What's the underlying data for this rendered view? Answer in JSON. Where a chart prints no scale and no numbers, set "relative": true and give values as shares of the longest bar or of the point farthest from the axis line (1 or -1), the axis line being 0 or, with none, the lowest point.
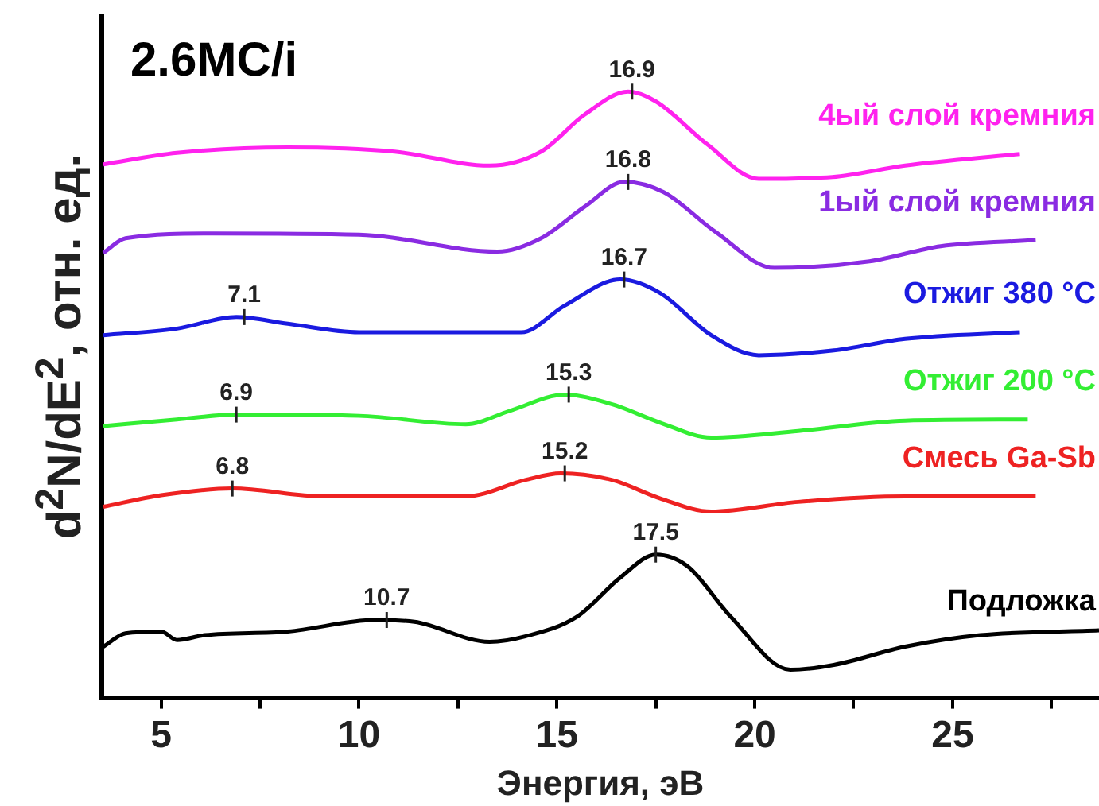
{
  "chart_data": {
    "type": "line",
    "relative": true,
    "xlabel": "Энергия, эВ",
    "ylabel": "d$^{2}$N/dE$^{2}$, отн. ед.",
    "xlim": [
      3.5,
      28.7
    ],
    "xticks": [
      5,
      {
        "value": 7.5,
        "label": null
      },
      10,
      {
        "value": 12.5,
        "label": null
      },
      15,
      {
        "value": 17.5,
        "label": null
      },
      20,
      {
        "value": 22.5,
        "label": null
      },
      25,
      {
        "value": 27.5,
        "label": null
      }
    ],
    "grid": false,
    "legend": false,
    "marker": "none",
    "line_style": "solid",
    "annotations": [
      "2.6MC/i",
      {
        "text": "16.9",
        "x": 16.9,
        "y": 1
      },
      {
        "text": "16.8",
        "x": 16.8,
        "y": 0.851
      },
      {
        "text": "7.1",
        "x": 7.1,
        "y": 0.628
      },
      {
        "text": "16.7",
        "x": 16.7,
        "y": 0.69
      },
      {
        "text": "6.9",
        "x": 6.9,
        "y": 0.467
      },
      {
        "text": "15.3",
        "x": 15.3,
        "y": 0.5
      },
      {
        "text": "6.8",
        "x": 6.8,
        "y": 0.345
      },
      {
        "text": "15.2",
        "x": 15.2,
        "y": 0.37
      },
      {
        "text": "10.7",
        "x": 10.7,
        "y": 0.128
      },
      {
        "text": "17.5",
        "x": 17.5,
        "y": 0.236
      }
    ],
    "series": [
      {
        "name": "4ый слой кремния",
        "color": "#ff22ee",
        "x": [
          3.54,
          5.4,
          8.2,
          10.9,
          13.3,
          14.6,
          15.7,
          16.8,
          17.5,
          18.8,
          20.1,
          21.96,
          23.8,
          26.7
        ],
        "values": [
          0.88,
          0.899,
          0.908,
          0.901,
          0.878,
          0.901,
          0.962,
          1,
          0.984,
          0.913,
          0.856,
          0.859,
          0.878,
          0.897
        ]
      },
      {
        "name": "1ый слой кремния",
        "color": "#8a2be2",
        "x": [
          3.54,
          4.1,
          6.3,
          10.0,
          13.5,
          14.6,
          15.7,
          16.7,
          17.7,
          19.0,
          20.5,
          22.9,
          24.7,
          27.1
        ],
        "values": [
          0.734,
          0.758,
          0.766,
          0.764,
          0.736,
          0.758,
          0.81,
          0.851,
          0.834,
          0.769,
          0.709,
          0.72,
          0.745,
          0.755
        ]
      },
      {
        "name": "Отжиг 380 °C",
        "color": "#1a1ae0",
        "x": [
          3.54,
          5.4,
          6.9,
          8.2,
          10.0,
          14.1,
          15.2,
          16.6,
          17.6,
          18.9,
          20.1,
          22.0,
          23.8,
          26.7
        ],
        "values": [
          0.598,
          0.609,
          0.628,
          0.617,
          0.603,
          0.603,
          0.647,
          0.69,
          0.668,
          0.598,
          0.565,
          0.573,
          0.592,
          0.603
        ]
      },
      {
        "name": "Отжиг 200 °C",
        "color": "#33ee33",
        "x": [
          3.54,
          5.4,
          6.9,
          10.0,
          12.7,
          13.8,
          15.2,
          16.4,
          17.6,
          18.9,
          21.1,
          23.8,
          26.9
        ],
        "values": [
          0.448,
          0.459,
          0.467,
          0.465,
          0.451,
          0.473,
          0.5,
          0.484,
          0.454,
          0.429,
          0.44,
          0.457,
          0.459
        ]
      },
      {
        "name": "Смесь Ga-Sb",
        "color": "#ee2222",
        "x": [
          3.54,
          5.0,
          6.8,
          9.1,
          12.7,
          14.2,
          15.1,
          16.4,
          17.6,
          18.9,
          21.1,
          23.8,
          27.1
        ],
        "values": [
          0.315,
          0.334,
          0.345,
          0.332,
          0.332,
          0.359,
          0.37,
          0.359,
          0.329,
          0.307,
          0.323,
          0.332,
          0.332
        ]
      },
      {
        "name": "Подложка",
        "color": "#000000",
        "x": [
          3.54,
          4.1,
          5.0,
          5.4,
          6.1,
          8.2,
          10.4,
          11.4,
          13.3,
          14.2,
          15.5,
          16.6,
          17.5,
          18.3,
          19.4,
          20.9,
          22.0,
          23.8,
          25.7,
          28.7
        ],
        "values": [
          0.084,
          0.106,
          0.109,
          0.095,
          0.103,
          0.109,
          0.128,
          0.125,
          0.092,
          0.101,
          0.133,
          0.198,
          0.236,
          0.217,
          0.133,
          0.046,
          0.054,
          0.084,
          0.103,
          0.111
        ]
      }
    ]
  }
}
